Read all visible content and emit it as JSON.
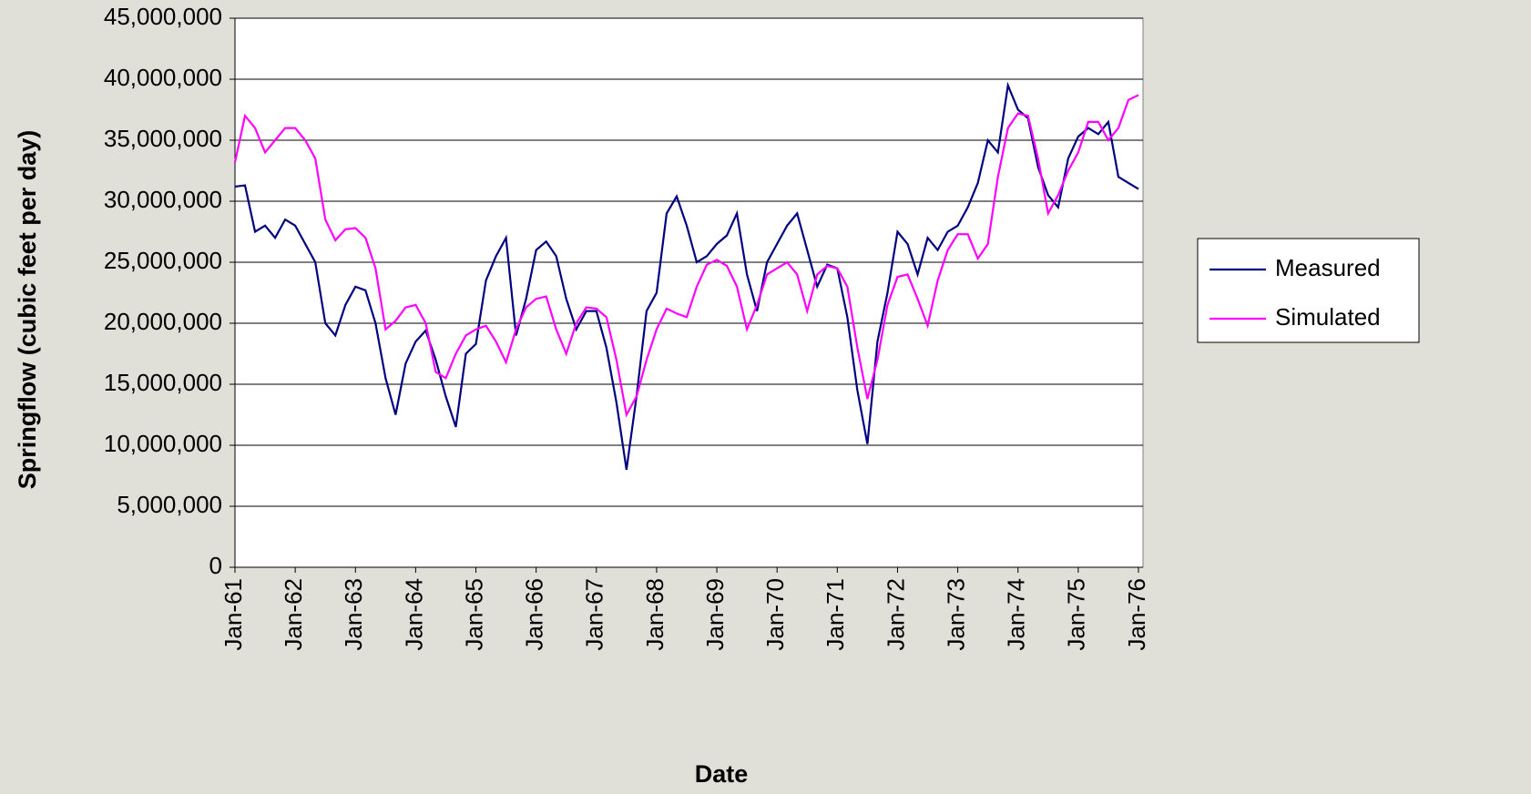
{
  "chart_data": {
    "type": "line",
    "x_label": "Date",
    "y_label": "Springflow (cubic feet per day)",
    "categories": [
      "Jan-61",
      null,
      null,
      null,
      null,
      null,
      "Jan-62",
      null,
      null,
      null,
      null,
      null,
      "Jan-63",
      null,
      null,
      null,
      null,
      null,
      "Jan-64",
      null,
      null,
      null,
      null,
      null,
      "Jan-65",
      null,
      null,
      null,
      null,
      null,
      "Jan-66",
      null,
      null,
      null,
      null,
      null,
      "Jan-67",
      null,
      null,
      null,
      null,
      null,
      "Jan-68",
      null,
      null,
      null,
      null,
      null,
      "Jan-69",
      null,
      null,
      null,
      null,
      null,
      "Jan-70",
      null,
      null,
      null,
      null,
      null,
      "Jan-71",
      null,
      null,
      null,
      null,
      null,
      "Jan-72",
      null,
      null,
      null,
      null,
      null,
      "Jan-73",
      null,
      null,
      null,
      null,
      null,
      "Jan-74",
      null,
      null,
      null,
      null,
      null,
      "Jan-75",
      null,
      null,
      null,
      null,
      null,
      "Jan-76"
    ],
    "series": [
      {
        "name": "Measured",
        "color": "#000080",
        "values": [
          31200000,
          31300000,
          27500000,
          28000000,
          27000000,
          28500000,
          28000000,
          26500000,
          25000000,
          20000000,
          19000000,
          21500000,
          23000000,
          22700000,
          20000000,
          15500000,
          12500000,
          16700000,
          18500000,
          19400000,
          17000000,
          14000000,
          11500000,
          17500000,
          18300000,
          23500000,
          25500000,
          27000000,
          19000000,
          22000000,
          26000000,
          26700000,
          25500000,
          22000000,
          19500000,
          21000000,
          21000000,
          18000000,
          13500000,
          8000000,
          14000000,
          21000000,
          22500000,
          29000000,
          30400000,
          28000000,
          25000000,
          25500000,
          26500000,
          27200000,
          29000000,
          24000000,
          21000000,
          25000000,
          26500000,
          28000000,
          29000000,
          26000000,
          23000000,
          24800000,
          24500000,
          20500000,
          14500000,
          10100000,
          18500000,
          22500000,
          27500000,
          26500000,
          24000000,
          27000000,
          26000000,
          27500000,
          28000000,
          29500000,
          31500000,
          35000000,
          34000000,
          39500000,
          37500000,
          36800000,
          32800000,
          30500000,
          29500000,
          33500000,
          35300000,
          36000000,
          35500000,
          36500000,
          32000000,
          31500000,
          31000000
        ]
      },
      {
        "name": "Simulated",
        "color": "#ff00ff",
        "values": [
          33200000,
          37000000,
          36000000,
          34000000,
          35000000,
          36000000,
          36000000,
          35000000,
          33500000,
          28500000,
          26800000,
          27700000,
          27800000,
          27000000,
          24500000,
          19500000,
          20200000,
          21300000,
          21500000,
          20000000,
          16000000,
          15500000,
          17500000,
          19000000,
          19500000,
          19800000,
          18500000,
          16800000,
          19500000,
          21300000,
          22000000,
          22200000,
          19500000,
          17500000,
          20000000,
          21300000,
          21200000,
          20500000,
          17000000,
          12500000,
          14000000,
          17000000,
          19500000,
          21200000,
          20800000,
          20500000,
          23000000,
          24800000,
          25200000,
          24700000,
          23000000,
          19500000,
          21500000,
          24000000,
          24500000,
          25000000,
          24000000,
          21000000,
          24000000,
          24700000,
          24500000,
          23000000,
          18000000,
          13800000,
          17000000,
          21500000,
          23800000,
          24000000,
          22000000,
          19800000,
          23500000,
          26000000,
          27300000,
          27300000,
          25300000,
          26500000,
          32000000,
          36000000,
          37200000,
          37000000,
          33500000,
          29000000,
          30500000,
          32500000,
          34000000,
          36500000,
          36500000,
          35000000,
          36000000,
          38300000,
          38700000
        ]
      }
    ],
    "ylim": [
      0,
      45000000
    ],
    "yticks": [
      {
        "value": 0,
        "label": "0"
      },
      {
        "value": 5000000,
        "label": "5,000,000"
      },
      {
        "value": 10000000,
        "label": "10,000,000"
      },
      {
        "value": 15000000,
        "label": "15,000,000"
      },
      {
        "value": 20000000,
        "label": "20,000,000"
      },
      {
        "value": 25000000,
        "label": "25,000,000"
      },
      {
        "value": 30000000,
        "label": "30,000,000"
      },
      {
        "value": 35000000,
        "label": "35,000,000"
      },
      {
        "value": 40000000,
        "label": "40,000,000"
      },
      {
        "value": 45000000,
        "label": "45,000,000"
      }
    ],
    "grid": true,
    "legend": "right"
  }
}
